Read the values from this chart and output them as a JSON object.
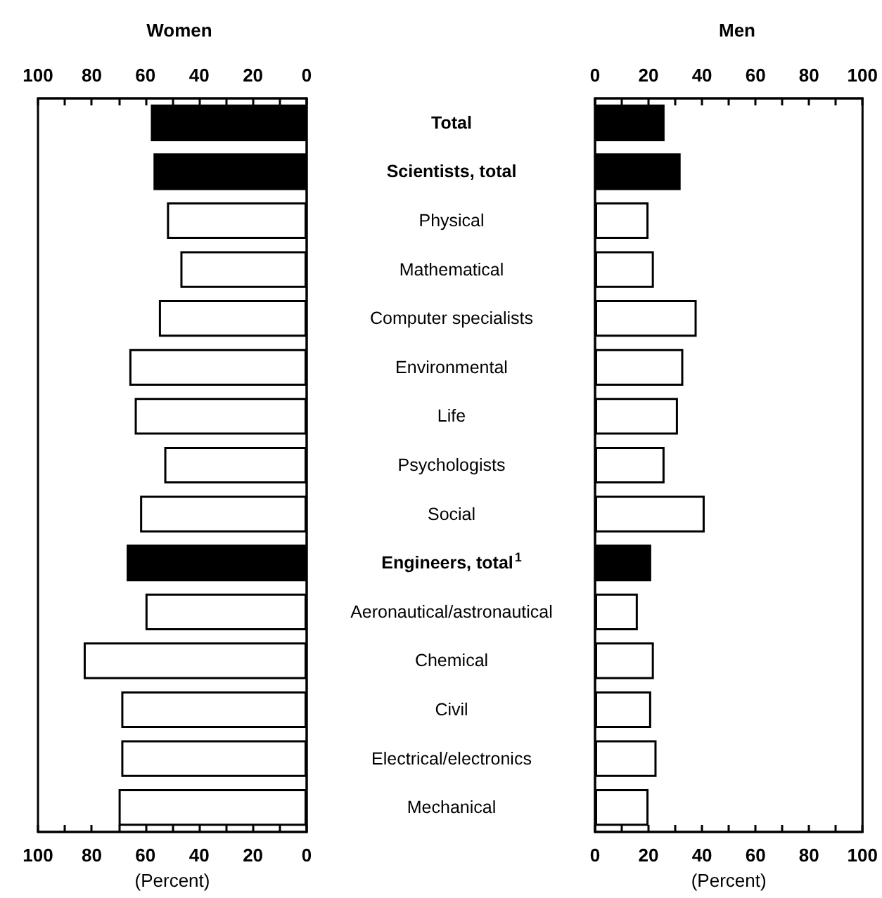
{
  "chart_data": [
    {
      "type": "bar",
      "orientation": "horizontal",
      "title": "Women",
      "xlabel": "(Percent)",
      "categories": [
        null,
        null,
        null,
        null,
        null,
        null,
        null,
        null,
        null,
        null,
        null,
        null,
        null,
        null,
        null
      ],
      "values": [
        58,
        57,
        52,
        47,
        55,
        66,
        64,
        53,
        62,
        67,
        60,
        83,
        69,
        69,
        70
      ],
      "colors": [
        "#000000",
        "#000000",
        "#ffffff",
        "#ffffff",
        "#ffffff",
        "#ffffff",
        "#ffffff",
        "#ffffff",
        "#ffffff",
        "#000000",
        "#ffffff",
        "#ffffff",
        "#ffffff",
        "#ffffff",
        "#ffffff"
      ],
      "xlim": [
        100,
        0
      ],
      "xticks": [
        100,
        {
          "value": 90,
          "label": null
        },
        80,
        {
          "value": 70,
          "label": null
        },
        60,
        {
          "value": 50,
          "label": null
        },
        40,
        {
          "value": 30,
          "label": null
        },
        20,
        {
          "value": 10,
          "label": null
        },
        0
      ],
      "x2lim": [
        100,
        0
      ],
      "x2ticks": [
        100,
        {
          "value": 90,
          "label": null
        },
        80,
        {
          "value": 70,
          "label": null
        },
        60,
        {
          "value": 50,
          "label": null
        },
        40,
        {
          "value": 30,
          "label": null
        },
        20,
        {
          "value": 10,
          "label": null
        },
        0
      ],
      "tick_labels": "x",
      "grid": false
    },
    {
      "type": "bar",
      "orientation": "horizontal",
      "title": "Men",
      "xlabel": "(Percent)",
      "categories": [
        "Total",
        "Scientists, total",
        "Physical",
        "Mathematical",
        "Computer specialists",
        "Environmental",
        "Life",
        "Psychologists",
        "Social",
        "Engineers, total$^{1}$",
        "Aeronautical/astronautical",
        "Chemical",
        "Civil",
        "Electrical/electronics",
        "Mechanical"
      ],
      "values": [
        26,
        32,
        20,
        22,
        38,
        33,
        31,
        26,
        41,
        21,
        16,
        22,
        21,
        23,
        20
      ],
      "colors": [
        "#000000",
        "#000000",
        "#ffffff",
        "#ffffff",
        "#ffffff",
        "#ffffff",
        "#ffffff",
        "#ffffff",
        "#ffffff",
        "#000000",
        "#ffffff",
        "#ffffff",
        "#ffffff",
        "#ffffff",
        "#ffffff"
      ],
      "xlim": [
        0,
        100
      ],
      "xticks": [
        0,
        {
          "value": 10,
          "label": null
        },
        20,
        {
          "value": 30,
          "label": null
        },
        40,
        {
          "value": 50,
          "label": null
        },
        60,
        {
          "value": 70,
          "label": null
        },
        80,
        {
          "value": 90,
          "label": null
        },
        100
      ],
      "x2lim": [
        0,
        100
      ],
      "x2ticks": [
        0,
        {
          "value": 10,
          "label": null
        },
        20,
        {
          "value": 30,
          "label": null
        },
        40,
        {
          "value": 50,
          "label": null
        },
        60,
        {
          "value": 70,
          "label": null
        },
        80,
        {
          "value": 90,
          "label": null
        },
        100
      ],
      "grid": false
    }
  ]
}
